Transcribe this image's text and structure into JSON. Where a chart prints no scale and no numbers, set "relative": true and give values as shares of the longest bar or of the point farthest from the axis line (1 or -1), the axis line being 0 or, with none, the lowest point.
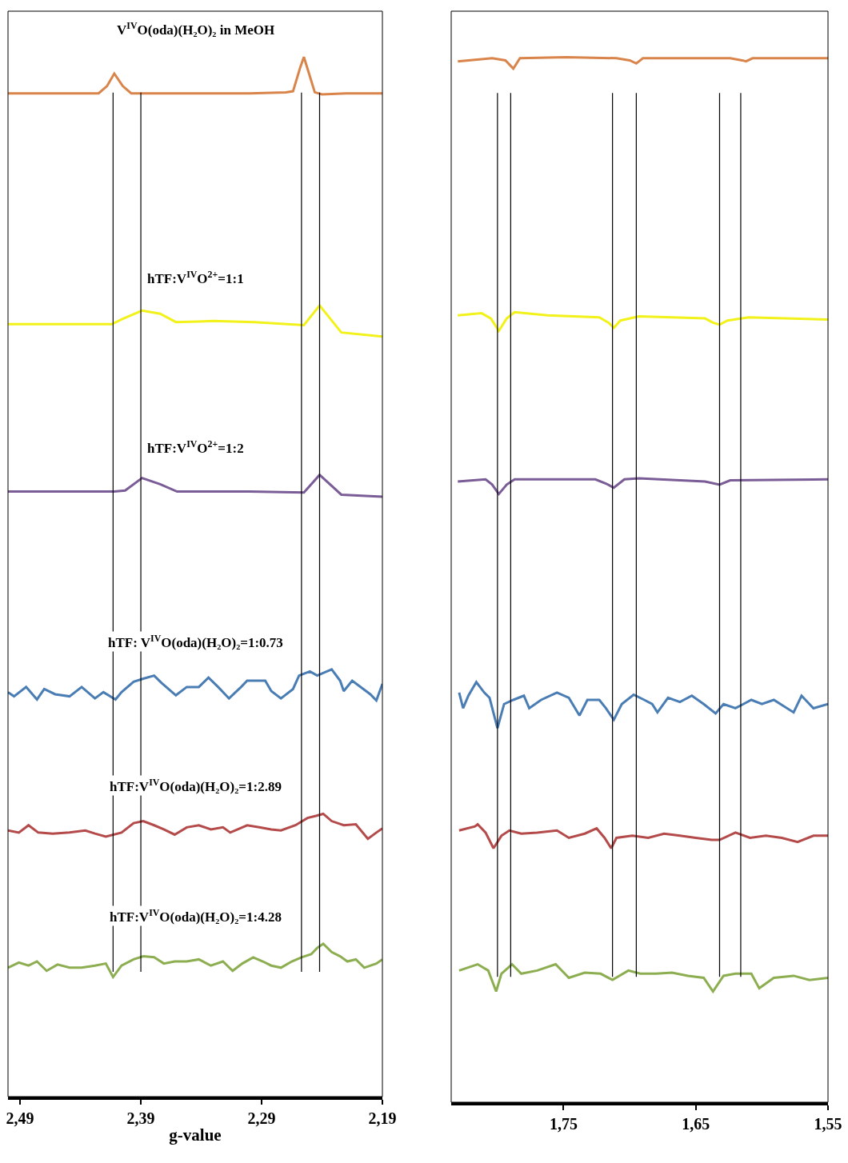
{
  "chart_data": [
    {
      "type": "line",
      "xlabel": "g-value",
      "relative": true,
      "legend": false,
      "grid": false,
      "marker": "none",
      "line_style": "solid",
      "xlim": [
        2.5,
        2.19
      ],
      "xticks": [
        {
          "value": 2.49,
          "label": "2,49"
        },
        {
          "value": 2.39,
          "label": "2,39"
        },
        {
          "value": 2.29,
          "label": "2,29"
        },
        {
          "value": 2.19,
          "label": "2,19"
        }
      ],
      "ref_lines": [
        {
          "axis": "x",
          "value": 2.413,
          "color": "#000000"
        },
        {
          "axis": "x",
          "value": 2.39,
          "color": "#000000"
        },
        {
          "axis": "x",
          "value": 2.257,
          "color": "#000000"
        },
        {
          "axis": "x",
          "value": 2.242,
          "color": "#000000"
        }
      ],
      "series": [
        {
          "name": "V$^{IV}$O(oda)(H₂O)₂ in MeOH",
          "color": "#d9844a",
          "x": [
            2.5,
            2.45,
            2.425,
            2.418,
            2.412,
            2.405,
            2.398,
            2.35,
            2.3,
            2.27,
            2.264,
            2.258,
            2.255,
            2.251,
            2.246,
            2.24,
            2.22,
            2.19
          ],
          "values": [
            0.965,
            0.965,
            0.965,
            0.972,
            0.984,
            0.972,
            0.965,
            0.965,
            0.965,
            0.966,
            0.967,
            0.99,
            1.0,
            0.985,
            0.966,
            0.964,
            0.965,
            0.965
          ]
        },
        {
          "name": "hTF:V$^{IV}$O$^{2+}$=1:1",
          "color": "#f2f21a",
          "x": [
            2.5,
            2.45,
            2.414,
            2.405,
            2.389,
            2.374,
            2.361,
            2.33,
            2.296,
            2.255,
            2.242,
            2.224,
            2.19
          ],
          "values": [
            0.743,
            0.743,
            0.743,
            0.748,
            0.756,
            0.753,
            0.745,
            0.746,
            0.745,
            0.742,
            0.761,
            0.735,
            0.731
          ]
        },
        {
          "name": "hTF:V$^{IV}$O$^{2+}$=1:2",
          "color": "#7a5c96",
          "x": [
            2.5,
            2.45,
            2.412,
            2.403,
            2.389,
            2.374,
            2.36,
            2.3,
            2.255,
            2.242,
            2.224,
            2.19
          ],
          "values": [
            0.582,
            0.582,
            0.582,
            0.583,
            0.595,
            0.589,
            0.582,
            0.582,
            0.581,
            0.598,
            0.579,
            0.577
          ]
        },
        {
          "name": "hTF: V$^{IV}$O(oda)(H₂O)₂=1:0.73",
          "color": "#4a7db4",
          "x": [
            2.5,
            2.495,
            2.485,
            2.476,
            2.47,
            2.461,
            2.449,
            2.439,
            2.428,
            2.421,
            2.411,
            2.406,
            2.396,
            2.388,
            2.379,
            2.373,
            2.361,
            2.352,
            2.342,
            2.334,
            2.326,
            2.317,
            2.307,
            2.302,
            2.287,
            2.282,
            2.274,
            2.264,
            2.259,
            2.25,
            2.244,
            2.232,
            2.225,
            2.222,
            2.215,
            2.2,
            2.195,
            2.19
          ],
          "values": [
            0.389,
            0.385,
            0.394,
            0.382,
            0.392,
            0.387,
            0.385,
            0.394,
            0.383,
            0.389,
            0.382,
            0.389,
            0.399,
            0.402,
            0.405,
            0.398,
            0.386,
            0.394,
            0.394,
            0.403,
            0.394,
            0.383,
            0.394,
            0.4,
            0.4,
            0.39,
            0.383,
            0.392,
            0.405,
            0.409,
            0.405,
            0.411,
            0.4,
            0.39,
            0.4,
            0.387,
            0.381,
            0.397
          ]
        },
        {
          "name": "hTF:V$^{IV}$O(oda)(H₂O)₂=1:2.89",
          "color": "#b44a4a",
          "x": [
            2.5,
            2.491,
            2.483,
            2.475,
            2.463,
            2.449,
            2.436,
            2.428,
            2.419,
            2.406,
            2.396,
            2.388,
            2.379,
            2.371,
            2.362,
            2.352,
            2.342,
            2.332,
            2.322,
            2.316,
            2.302,
            2.292,
            2.282,
            2.274,
            2.262,
            2.252,
            2.245,
            2.239,
            2.232,
            2.222,
            2.212,
            2.202,
            2.195,
            2.19
          ],
          "values": [
            0.256,
            0.254,
            0.261,
            0.254,
            0.253,
            0.254,
            0.256,
            0.253,
            0.25,
            0.254,
            0.263,
            0.265,
            0.261,
            0.257,
            0.252,
            0.259,
            0.261,
            0.257,
            0.259,
            0.254,
            0.261,
            0.259,
            0.257,
            0.256,
            0.261,
            0.268,
            0.27,
            0.272,
            0.265,
            0.261,
            0.262,
            0.248,
            0.254,
            0.258
          ]
        },
        {
          "name": "hTF:V$^{IV}$O(oda)(H₂O)₂=1:4.28",
          "color": "#8cae50",
          "x": [
            2.5,
            2.491,
            2.483,
            2.476,
            2.468,
            2.459,
            2.449,
            2.439,
            2.428,
            2.419,
            2.413,
            2.406,
            2.396,
            2.388,
            2.379,
            2.371,
            2.362,
            2.352,
            2.342,
            2.332,
            2.322,
            2.314,
            2.306,
            2.297,
            2.289,
            2.282,
            2.274,
            2.265,
            2.257,
            2.249,
            2.244,
            2.239,
            2.232,
            2.225,
            2.219,
            2.212,
            2.205,
            2.195,
            2.19
          ],
          "values": [
            0.124,
            0.129,
            0.126,
            0.13,
            0.121,
            0.127,
            0.124,
            0.124,
            0.126,
            0.128,
            0.115,
            0.126,
            0.132,
            0.135,
            0.134,
            0.128,
            0.13,
            0.13,
            0.132,
            0.126,
            0.13,
            0.121,
            0.128,
            0.134,
            0.13,
            0.126,
            0.124,
            0.13,
            0.134,
            0.137,
            0.143,
            0.147,
            0.139,
            0.135,
            0.13,
            0.132,
            0.124,
            0.128,
            0.132
          ]
        }
      ]
    },
    {
      "type": "line",
      "relative": true,
      "legend": false,
      "grid": false,
      "marker": "none",
      "line_style": "solid",
      "xlim": [
        1.835,
        1.55
      ],
      "xticks": [
        {
          "value": 1.75,
          "label": "1,75"
        },
        {
          "value": 1.65,
          "label": "1,65"
        },
        {
          "value": 1.55,
          "label": "1,55"
        }
      ],
      "ref_lines": [
        {
          "axis": "x",
          "value": 1.8,
          "color": "#000000"
        },
        {
          "axis": "x",
          "value": 1.79,
          "color": "#000000"
        },
        {
          "axis": "x",
          "value": 1.713,
          "color": "#000000"
        },
        {
          "axis": "x",
          "value": 1.695,
          "color": "#000000"
        },
        {
          "axis": "x",
          "value": 1.632,
          "color": "#000000"
        },
        {
          "axis": "x",
          "value": 1.616,
          "color": "#000000"
        }
      ],
      "series": [
        {
          "color": "#d9844a",
          "x": [
            1.83,
            1.804,
            1.794,
            1.788,
            1.783,
            1.748,
            1.71,
            1.7,
            1.695,
            1.69,
            1.624,
            1.615,
            1.612,
            1.607,
            1.55
          ],
          "values": [
            0.996,
            0.999,
            0.997,
            0.989,
            0.999,
            1.0,
            0.999,
            0.997,
            0.994,
            0.999,
            0.999,
            0.997,
            0.996,
            0.999,
            0.999
          ]
        },
        {
          "color": "#f2f21a",
          "x": [
            1.83,
            1.812,
            1.805,
            1.799,
            1.793,
            1.787,
            1.762,
            1.723,
            1.716,
            1.712,
            1.707,
            1.693,
            1.643,
            1.637,
            1.632,
            1.626,
            1.61,
            1.55
          ],
          "values": [
            0.753,
            0.755,
            0.75,
            0.738,
            0.75,
            0.756,
            0.753,
            0.751,
            0.746,
            0.741,
            0.748,
            0.752,
            0.75,
            0.746,
            0.744,
            0.748,
            0.751,
            0.749
          ]
        },
        {
          "color": "#7a5c96",
          "x": [
            1.83,
            1.809,
            1.804,
            1.799,
            1.793,
            1.787,
            1.726,
            1.718,
            1.712,
            1.704,
            1.693,
            1.643,
            1.632,
            1.624,
            1.55
          ],
          "values": [
            0.594,
            0.596,
            0.591,
            0.582,
            0.591,
            0.596,
            0.596,
            0.592,
            0.588,
            0.596,
            0.597,
            0.594,
            0.591,
            0.595,
            0.596
          ]
        },
        {
          "color": "#4a7db4",
          "x": [
            1.829,
            1.826,
            1.822,
            1.816,
            1.81,
            1.806,
            1.8,
            1.795,
            1.788,
            1.78,
            1.776,
            1.767,
            1.755,
            1.746,
            1.738,
            1.732,
            1.723,
            1.718,
            1.712,
            1.706,
            1.697,
            1.689,
            1.683,
            1.679,
            1.671,
            1.662,
            1.653,
            1.644,
            1.635,
            1.629,
            1.62,
            1.614,
            1.608,
            1.6,
            1.591,
            1.576,
            1.57,
            1.561,
            1.55
          ],
          "values": [
            0.392,
            0.377,
            0.389,
            0.402,
            0.392,
            0.387,
            0.358,
            0.381,
            0.385,
            0.389,
            0.377,
            0.385,
            0.392,
            0.387,
            0.37,
            0.385,
            0.385,
            0.377,
            0.366,
            0.381,
            0.39,
            0.385,
            0.381,
            0.373,
            0.387,
            0.383,
            0.389,
            0.381,
            0.372,
            0.381,
            0.377,
            0.381,
            0.385,
            0.381,
            0.385,
            0.373,
            0.389,
            0.377,
            0.381
          ]
        },
        {
          "color": "#b44a4a",
          "x": [
            1.829,
            1.817,
            1.815,
            1.809,
            1.803,
            1.797,
            1.791,
            1.782,
            1.77,
            1.755,
            1.746,
            1.734,
            1.725,
            1.719,
            1.714,
            1.71,
            1.698,
            1.686,
            1.674,
            1.662,
            1.65,
            1.638,
            1.632,
            1.62,
            1.609,
            1.597,
            1.585,
            1.573,
            1.561,
            1.55
          ],
          "values": [
            0.26,
            0.264,
            0.266,
            0.258,
            0.243,
            0.255,
            0.26,
            0.257,
            0.258,
            0.26,
            0.253,
            0.257,
            0.262,
            0.253,
            0.243,
            0.253,
            0.255,
            0.253,
            0.257,
            0.255,
            0.253,
            0.251,
            0.251,
            0.258,
            0.253,
            0.255,
            0.253,
            0.249,
            0.255,
            0.255
          ]
        },
        {
          "color": "#8cae50",
          "x": [
            1.829,
            1.815,
            1.807,
            1.801,
            1.797,
            1.789,
            1.782,
            1.77,
            1.756,
            1.746,
            1.734,
            1.722,
            1.713,
            1.701,
            1.692,
            1.68,
            1.668,
            1.656,
            1.644,
            1.637,
            1.629,
            1.62,
            1.608,
            1.602,
            1.591,
            1.576,
            1.564,
            1.55
          ],
          "values": [
            0.126,
            0.132,
            0.126,
            0.106,
            0.123,
            0.132,
            0.123,
            0.126,
            0.132,
            0.119,
            0.124,
            0.123,
            0.117,
            0.126,
            0.123,
            0.123,
            0.124,
            0.121,
            0.119,
            0.106,
            0.121,
            0.123,
            0.123,
            0.109,
            0.119,
            0.121,
            0.117,
            0.119
          ]
        }
      ]
    }
  ]
}
